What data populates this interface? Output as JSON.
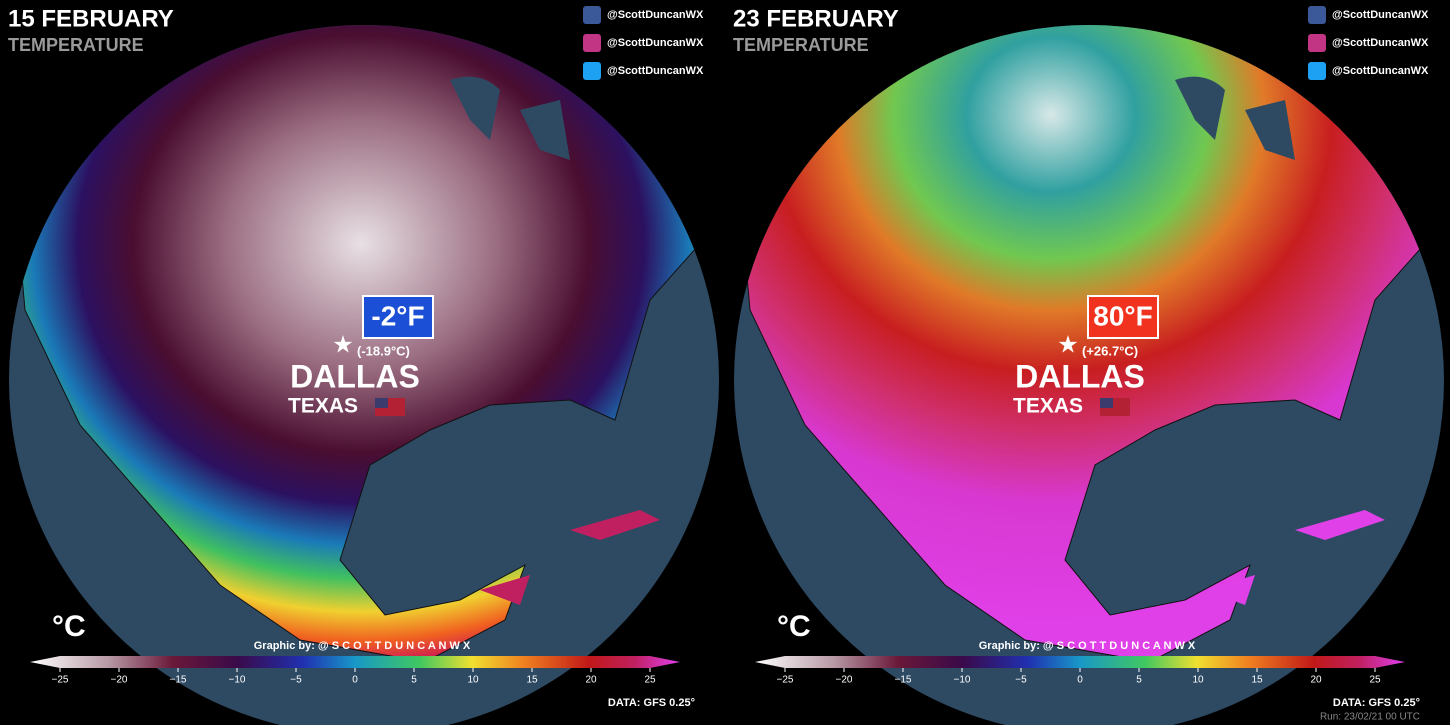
{
  "panels": [
    {
      "title": "15 FEBRUARY",
      "subtitle": "TEMPERATURE",
      "social": [
        "@ScottDuncanWX",
        "@ScottDuncanWX",
        "@ScottDuncanWX"
      ],
      "temperature": "-2°F",
      "celsius": "(-18.9°C)",
      "city": "DALLAS",
      "state": "TEXAS",
      "unit": "°C",
      "credit": "Graphic by: @ S C O T T D U N C A N W X",
      "colorbar_ticks": [
        "−25",
        "−20",
        "−15",
        "−10",
        "−5",
        "0",
        "5",
        "10",
        "15",
        "20",
        "25"
      ],
      "source": "DATA: GFS 0.25°"
    },
    {
      "title": "23 FEBRUARY",
      "subtitle": "TEMPERATURE",
      "social": [
        "@ScottDuncanWX",
        "@ScottDuncanWX",
        "@ScottDuncanWX"
      ],
      "temperature": "80°F",
      "celsius": "(+26.7°C)",
      "city": "DALLAS",
      "state": "TEXAS",
      "unit": "°C",
      "credit": "Graphic by: @ S C O T T D U N C A N W X",
      "colorbar_ticks": [
        "−25",
        "−20",
        "−15",
        "−10",
        "−5",
        "0",
        "5",
        "10",
        "15",
        "20",
        "25"
      ],
      "source": "DATA: GFS 0.25°",
      "run": "Run: 23/02/21 00 UTC"
    }
  ]
}
